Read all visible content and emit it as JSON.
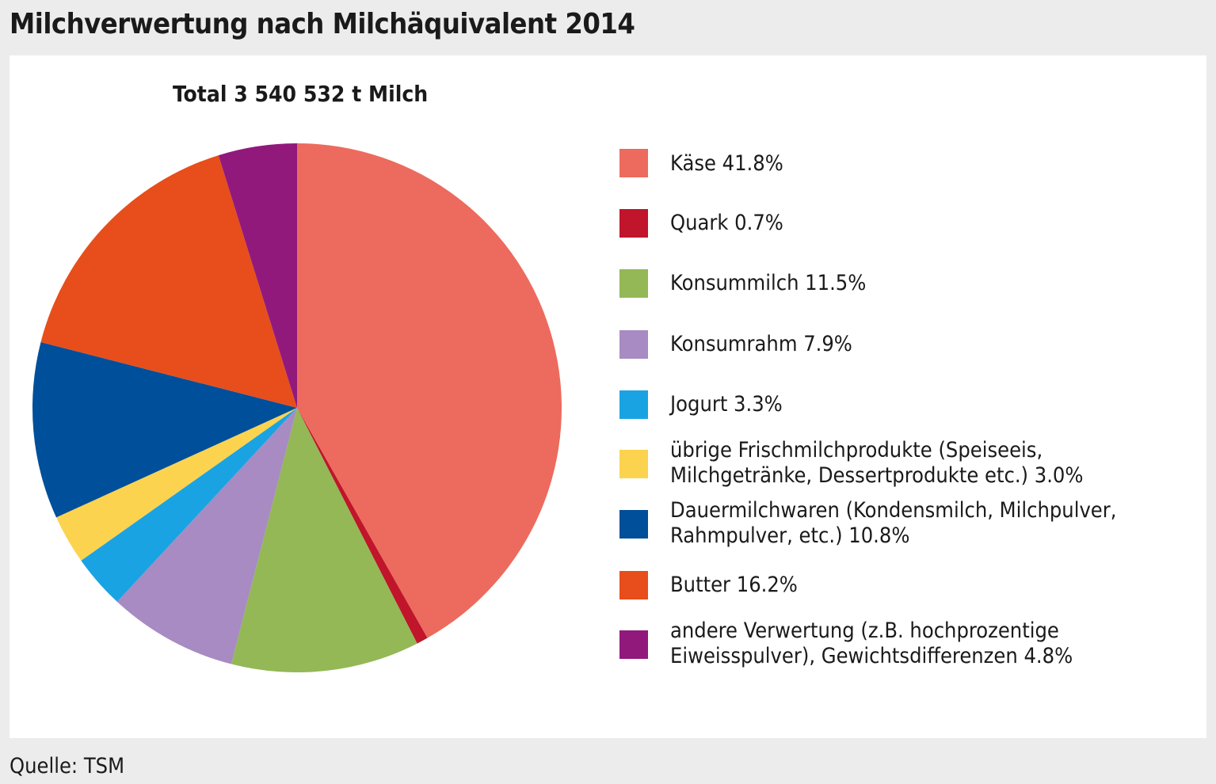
{
  "title": "Milchverwertung nach Milchäquivalent 2014",
  "source": "Quelle: TSM",
  "chart_data": {
    "type": "pie",
    "subtitle": "Total 3 540 532 t Milch",
    "start_angle": "12 o'clock, clockwise",
    "slices": [
      {
        "name": "Käse",
        "label": "Käse 41.8%",
        "value": 41.8,
        "color": "#ec6b5e"
      },
      {
        "name": "Quark",
        "label": "Quark 0.7%",
        "value": 0.7,
        "color": "#c0152a"
      },
      {
        "name": "Konsummilch",
        "label": "Konsummilch 11.5%",
        "value": 11.5,
        "color": "#93b855"
      },
      {
        "name": "Konsumrahm",
        "label": "Konsumrahm 7.9%",
        "value": 7.9,
        "color": "#a78bc2"
      },
      {
        "name": "Jogurt",
        "label": "Jogurt 3.3%",
        "value": 3.3,
        "color": "#1aa3e2"
      },
      {
        "name": "übrige Frischmilchprodukte",
        "label": "übrige Frischmilchprodukte (Speiseeis, Milchgetränke, Dessertprodukte etc.) 3.0%",
        "value": 3.0,
        "color": "#fcd34f"
      },
      {
        "name": "Dauermilchwaren",
        "label": "Dauermilchwaren (Kondensmilch, Milchpulver, Rahmpulver, etc.) 10.8%",
        "value": 10.8,
        "color": "#004f9a"
      },
      {
        "name": "Butter",
        "label": "Butter 16.2%",
        "value": 16.2,
        "color": "#e74e1b"
      },
      {
        "name": "andere Verwertung",
        "label": "andere Verwertung (z.B. hochprozentige Eiweisspulver), Gewichtsdifferenzen 4.8%",
        "value": 4.8,
        "color": "#92197c"
      }
    ]
  }
}
